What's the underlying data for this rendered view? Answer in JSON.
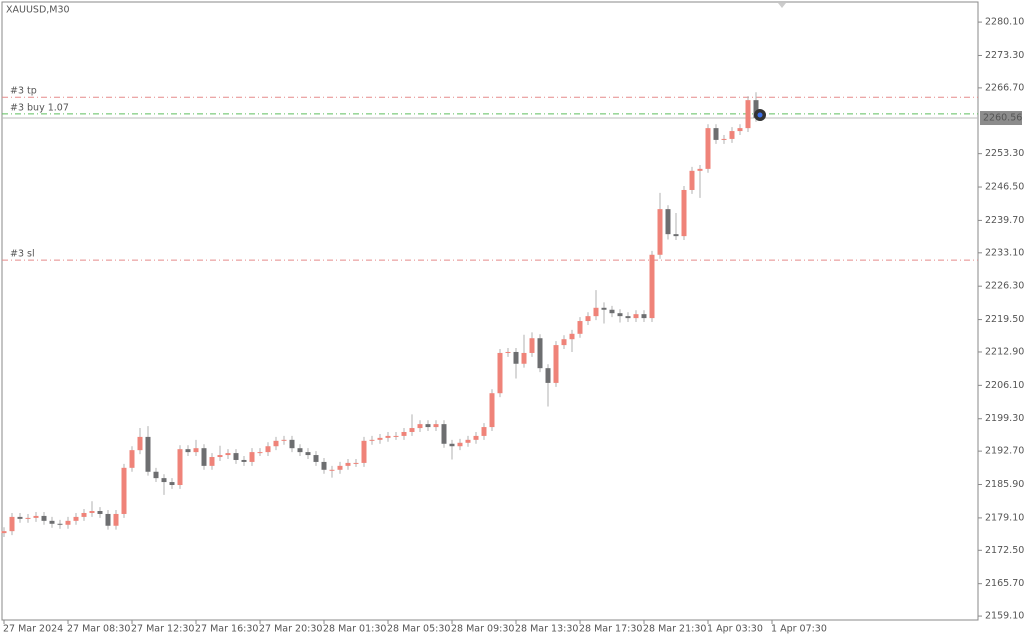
{
  "chart_data": {
    "type": "candlestick",
    "title": "XAUUSD,M30",
    "open": [
      2176.0,
      2176.4,
      2179.3,
      2178.9,
      2179.1,
      2179.5,
      2178.5,
      2177.9,
      2177.7,
      2178.5,
      2179.3,
      2180.1,
      2180.5,
      2179.9,
      2177.5,
      2179.9,
      2189.3,
      2192.9,
      2195.6,
      2188.5,
      2187.2,
      2186.4,
      2185.8,
      2193.1,
      2192.5,
      2193.3,
      2189.7,
      2191.5,
      2191.9,
      2192.3,
      2190.9,
      2190.5,
      2192.5,
      2192.5,
      2193.7,
      2194.8,
      2195.0,
      2193.3,
      2192.5,
      2191.9,
      2190.5,
      2188.9,
      2188.9,
      2189.7,
      2190.3,
      2190.3,
      2194.8,
      2195.0,
      2195.4,
      2195.8,
      2195.8,
      2196.6,
      2197.4,
      2198.2,
      2197.6,
      2198.2,
      2194.2,
      2193.7,
      2194.4,
      2195.0,
      2195.8,
      2197.6,
      2204.5,
      2212.7,
      2212.9,
      2210.5,
      2212.7,
      2215.7,
      2209.6,
      2206.6,
      2214.3,
      2215.5,
      2216.6,
      2219.2,
      2220.2,
      2221.9,
      2221.5,
      2220.8,
      2220.2,
      2219.8,
      2220.6,
      2219.8,
      2232.7,
      2242.0,
      2236.9,
      2236.5,
      2245.9,
      2249.8,
      2250.2,
      2258.5,
      2256.1,
      2256.3,
      2257.9,
      2258.5,
      2264.2
    ],
    "high": [
      2177.2,
      2180.1,
      2180.1,
      2179.9,
      2180.3,
      2180.3,
      2179.3,
      2178.7,
      2179.3,
      2180.1,
      2180.9,
      2182.5,
      2181.3,
      2180.7,
      2180.7,
      2190.1,
      2193.7,
      2197.4,
      2197.8,
      2189.3,
      2188.0,
      2187.2,
      2193.9,
      2193.9,
      2195.0,
      2194.1,
      2192.3,
      2193.8,
      2193.1,
      2193.1,
      2191.7,
      2193.3,
      2193.3,
      2194.5,
      2195.6,
      2195.8,
      2195.8,
      2194.1,
      2193.3,
      2192.7,
      2191.3,
      2189.7,
      2190.5,
      2191.1,
      2191.1,
      2195.6,
      2195.8,
      2196.2,
      2196.6,
      2196.6,
      2197.4,
      2200.2,
      2199.0,
      2199.0,
      2199.0,
      2199.0,
      2195.0,
      2195.2,
      2195.8,
      2196.6,
      2198.4,
      2205.3,
      2213.5,
      2213.7,
      2213.7,
      2216.4,
      2216.9,
      2216.5,
      2210.4,
      2215.1,
      2216.3,
      2217.4,
      2220.0,
      2221.0,
      2225.5,
      2223.0,
      2222.3,
      2221.6,
      2221.0,
      2221.4,
      2221.4,
      2233.5,
      2245.3,
      2242.8,
      2241.2,
      2246.7,
      2250.6,
      2251.0,
      2259.3,
      2259.3,
      2257.1,
      2258.7,
      2259.3,
      2265.0,
      2265.8
    ],
    "low": [
      2175.2,
      2175.6,
      2178.1,
      2178.1,
      2178.3,
      2177.7,
      2177.1,
      2176.9,
      2176.9,
      2177.7,
      2178.5,
      2179.3,
      2179.1,
      2176.7,
      2176.7,
      2179.1,
      2188.5,
      2192.1,
      2187.7,
      2186.4,
      2183.8,
      2185.0,
      2185.0,
      2191.7,
      2191.7,
      2188.9,
      2188.9,
      2190.7,
      2191.1,
      2190.1,
      2189.7,
      2189.7,
      2191.7,
      2191.7,
      2192.9,
      2194.0,
      2192.5,
      2191.7,
      2191.1,
      2189.7,
      2188.1,
      2187.3,
      2188.1,
      2188.9,
      2189.5,
      2189.5,
      2194.0,
      2194.2,
      2194.6,
      2195.0,
      2195.0,
      2195.8,
      2196.6,
      2196.8,
      2196.8,
      2193.4,
      2191.0,
      2192.9,
      2193.6,
      2194.2,
      2195.0,
      2196.8,
      2203.7,
      2211.9,
      2207.5,
      2209.7,
      2211.9,
      2208.8,
      2201.8,
      2205.8,
      2213.5,
      2212.9,
      2215.8,
      2218.4,
      2219.4,
      2218.7,
      2220.0,
      2218.9,
      2219.0,
      2219.0,
      2219.0,
      2219.0,
      2231.9,
      2235.8,
      2235.7,
      2235.7,
      2245.1,
      2244.3,
      2249.4,
      2255.3,
      2255.3,
      2255.5,
      2257.1,
      2257.7,
      2259.8
    ],
    "close": [
      2176.4,
      2179.3,
      2178.9,
      2179.1,
      2179.5,
      2178.5,
      2177.9,
      2177.7,
      2178.5,
      2179.3,
      2180.1,
      2180.5,
      2179.9,
      2177.5,
      2179.9,
      2189.3,
      2192.9,
      2195.6,
      2188.5,
      2187.2,
      2186.4,
      2185.8,
      2193.1,
      2192.5,
      2193.3,
      2189.7,
      2191.5,
      2191.9,
      2192.3,
      2190.9,
      2190.5,
      2192.5,
      2192.5,
      2193.7,
      2194.8,
      2195.0,
      2193.3,
      2192.5,
      2191.9,
      2190.5,
      2188.9,
      2188.9,
      2189.7,
      2190.3,
      2190.3,
      2194.8,
      2195.0,
      2195.4,
      2195.8,
      2195.8,
      2196.6,
      2197.4,
      2198.2,
      2197.6,
      2198.2,
      2194.2,
      2193.7,
      2194.4,
      2195.0,
      2195.8,
      2197.6,
      2204.5,
      2212.7,
      2212.9,
      2210.5,
      2212.7,
      2215.7,
      2209.6,
      2206.6,
      2214.3,
      2215.5,
      2216.6,
      2219.2,
      2220.2,
      2221.9,
      2221.5,
      2220.8,
      2220.2,
      2219.8,
      2220.6,
      2219.8,
      2232.7,
      2242.0,
      2236.9,
      2236.5,
      2245.9,
      2249.8,
      2250.2,
      2258.5,
      2256.1,
      2256.3,
      2257.9,
      2258.5,
      2264.2,
      2260.6
    ],
    "up_color": "#ef8379",
    "down_color": "#6d6e70",
    "ylim": [
      2158.3,
      2284.6
    ],
    "yticks": [
      {
        "value": 2280.1,
        "label": "2280.10"
      },
      {
        "value": 2273.3,
        "label": "2273.30"
      },
      {
        "value": 2266.7,
        "label": "2266.70"
      },
      {
        "value": 2253.3,
        "label": "2253.30"
      },
      {
        "value": 2246.5,
        "label": "2246.50"
      },
      {
        "value": 2239.7,
        "label": "2239.70"
      },
      {
        "value": 2233.1,
        "label": "2233.10"
      },
      {
        "value": 2226.3,
        "label": "2226.30"
      },
      {
        "value": 2219.5,
        "label": "2219.50"
      },
      {
        "value": 2212.9,
        "label": "2212.90"
      },
      {
        "value": 2206.1,
        "label": "2206.10"
      },
      {
        "value": 2199.3,
        "label": "2199.30"
      },
      {
        "value": 2192.7,
        "label": "2192.70"
      },
      {
        "value": 2185.9,
        "label": "2185.90"
      },
      {
        "value": 2179.1,
        "label": "2179.10"
      },
      {
        "value": 2172.5,
        "label": "2172.50"
      },
      {
        "value": 2165.7,
        "label": "2165.70"
      },
      {
        "value": 2159.1,
        "label": "2159.10"
      }
    ],
    "xticks": [
      {
        "value": 0,
        "label": "27 Mar 2024"
      },
      {
        "value": 8,
        "label": "27 Mar 08:30"
      },
      {
        "value": 16,
        "label": "27 Mar 12:30"
      },
      {
        "value": 24,
        "label": "27 Mar 16:30"
      },
      {
        "value": 32,
        "label": "27 Mar 20:30"
      },
      {
        "value": 40,
        "label": "28 Mar 01:30"
      },
      {
        "value": 48,
        "label": "28 Mar 05:30"
      },
      {
        "value": 56,
        "label": "28 Mar 09:30"
      },
      {
        "value": 64,
        "label": "28 Mar 13:30"
      },
      {
        "value": 72,
        "label": "28 Mar 17:30"
      },
      {
        "value": 80,
        "label": "28 Mar 21:30"
      },
      {
        "value": 88,
        "label": "1 Apr 03:30"
      },
      {
        "value": 96,
        "label": "1 Apr 07:30"
      }
    ],
    "levels": [
      {
        "label": "#3 tp",
        "value": 2264.8,
        "color": "#e58a8a"
      },
      {
        "label": "#3 buy 1.07",
        "value": 2261.4,
        "color": "#5fbf5f"
      },
      {
        "label": "#3 sl",
        "value": 2231.6,
        "color": "#e58a8a"
      }
    ],
    "bid": {
      "value": 2260.56,
      "label": "2260.56",
      "color": "#8c8c8c"
    }
  }
}
